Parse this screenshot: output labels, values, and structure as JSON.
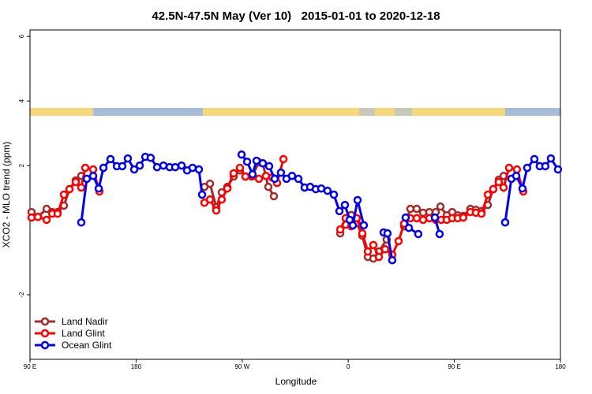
{
  "chart_data": {
    "type": "line",
    "title": "42.5N-47.5N May (Ver 10)   2015-01-01 to 2020-12-18",
    "x_label": "Longitude",
    "y_label": "XCO2 - MLO trend (ppm)",
    "xlim": [
      90,
      540
    ],
    "ylim": [
      -4,
      6.2
    ],
    "xticks": [
      {
        "value": 90,
        "label": "90 E"
      },
      180,
      {
        "value": 270,
        "label": "90 W"
      },
      {
        "value": 360,
        "label": "0"
      },
      {
        "value": 450,
        "label": "90 E"
      },
      {
        "value": 540,
        "label": "180"
      }
    ],
    "yticks": [
      -2,
      2,
      4,
      6
    ],
    "legend": "bottom-left",
    "series": [
      {
        "name": "Land Nadir",
        "color": "#a52a2a",
        "x": [
          91.3,
          96.7,
          104.1,
          108.8,
          113.4,
          118.8,
          123.5,
          128.8,
          133.5,
          null,
          238.0,
          242.7,
          248.0,
          252.7,
          257.4,
          262.8,
          268.1,
          272.8,
          278.2,
          284.2,
          287.5,
          292.2,
          296.9,
          null,
          353.2,
          357.8,
          362.5,
          367.2,
          371.9,
          376.6,
          381.3,
          386.0,
          392.6,
          null,
          407.4,
          412.7,
          418.1,
          423.5,
          428.8,
          434.2,
          438.2,
          443.6,
          448.2,
          452.9,
          457.6,
          463.6,
          468.3,
          473.0,
          478.4,
          483.0,
          487.7,
          491.8
        ],
        "values": [
          0.56,
          0.41,
          0.66,
          0.56,
          0.56,
          0.76,
          1.27,
          1.54,
          1.68,
          null,
          1.34,
          1.44,
          0.71,
          1.17,
          1.34,
          1.66,
          1.85,
          1.66,
          1.66,
          2.1,
          2.07,
          1.34,
          1.05,
          null,
          -0.1,
          0.17,
          0.47,
          0.22,
          -0.17,
          -0.83,
          -0.88,
          -0.66,
          -0.29,
          null,
          0.12,
          0.66,
          0.66,
          0.54,
          0.56,
          0.56,
          0.73,
          0.46,
          0.56,
          0.46,
          0.44,
          0.66,
          0.63,
          0.59,
          0.78,
          1.27,
          1.56,
          1.68
        ]
      },
      {
        "name": "Land Glint",
        "color": "#ff0000",
        "x": [
          91.3,
          96.7,
          104.1,
          108.8,
          113.4,
          118.8,
          123.5,
          128.8,
          133.5,
          136.9,
          143.6,
          148.9,
          null,
          238.0,
          242.7,
          248.0,
          252.7,
          257.4,
          262.8,
          268.1,
          272.8,
          278.2,
          284.2,
          290.2,
          295.6,
          299.6,
          305.0,
          null,
          353.2,
          357.8,
          362.5,
          367.2,
          371.9,
          376.6,
          381.3,
          386.0,
          391.3,
          397.3,
          402.7,
          407.4,
          412.7,
          418.1,
          423.5,
          428.8,
          434.2,
          438.9,
          443.6,
          448.2,
          452.9,
          457.6,
          463.6,
          468.3,
          473.0,
          478.4,
          483.0,
          487.7,
          491.8,
          496.4,
          503.1,
          508.5
        ],
        "values": [
          0.39,
          0.41,
          0.32,
          0.51,
          0.51,
          1.1,
          1.27,
          1.49,
          1.32,
          1.93,
          1.88,
          1.2,
          null,
          0.85,
          0.95,
          0.61,
          0.95,
          1.29,
          1.76,
          1.93,
          1.66,
          1.68,
          1.59,
          1.68,
          1.63,
          1.46,
          2.2,
          null,
          0.02,
          0.37,
          0.12,
          0.37,
          -0.1,
          -0.66,
          -0.46,
          -0.83,
          -0.59,
          -0.76,
          -0.34,
          0.2,
          0.37,
          0.37,
          0.32,
          0.37,
          0.32,
          0.32,
          0.32,
          0.37,
          0.37,
          0.39,
          0.56,
          0.54,
          0.51,
          1.1,
          1.27,
          1.49,
          1.32,
          1.93,
          1.88,
          1.2
        ]
      },
      {
        "name": "Ocean Glint",
        "color": "#0000ee",
        "x": [
          133.5,
          138.2,
          143.6,
          148.3,
          152.3,
          158.3,
          163.7,
          168.3,
          173.0,
          178.4,
          183.1,
          187.8,
          192.4,
          197.8,
          203.2,
          208.5,
          213.2,
          218.6,
          223.3,
          227.9,
          233.3,
          236.0,
          null,
          269.5,
          274.2,
          278.8,
          282.2,
          287.5,
          292.9,
          297.6,
          302.9,
          307.6,
          312.3,
          317.7,
          323.0,
          327.7,
          332.4,
          337.1,
          342.4,
          347.8,
          352.5,
          357.2,
          361.2,
          363.9,
          367.9,
          373.2,
          null,
          390.0,
          393.3,
          397.3,
          null,
          408.7,
          411.4,
          419.4,
          null,
          433.5,
          437.5,
          null,
          493.1,
          498.4,
          502.5,
          507.8,
          511.8,
          517.9,
          522.5,
          527.2,
          531.9,
          537.9
        ],
        "values": [
          0.24,
          1.59,
          1.68,
          1.29,
          1.93,
          2.2,
          1.98,
          1.98,
          2.22,
          1.88,
          2.0,
          2.27,
          2.24,
          1.95,
          2.0,
          1.95,
          1.95,
          2.0,
          1.85,
          1.93,
          1.88,
          1.1,
          null,
          2.34,
          2.12,
          1.73,
          2.15,
          2.07,
          1.98,
          1.59,
          1.78,
          1.59,
          1.68,
          1.59,
          1.32,
          1.34,
          1.27,
          1.29,
          1.22,
          1.1,
          0.59,
          0.78,
          0.32,
          0.15,
          0.93,
          0.15,
          null,
          -0.07,
          -0.1,
          -0.93,
          null,
          0.39,
          0.07,
          -0.12,
          null,
          0.39,
          -0.12,
          null,
          0.24,
          1.59,
          1.68,
          1.29,
          1.93,
          2.2,
          1.98,
          1.98,
          2.22,
          1.88
        ]
      }
    ]
  }
}
